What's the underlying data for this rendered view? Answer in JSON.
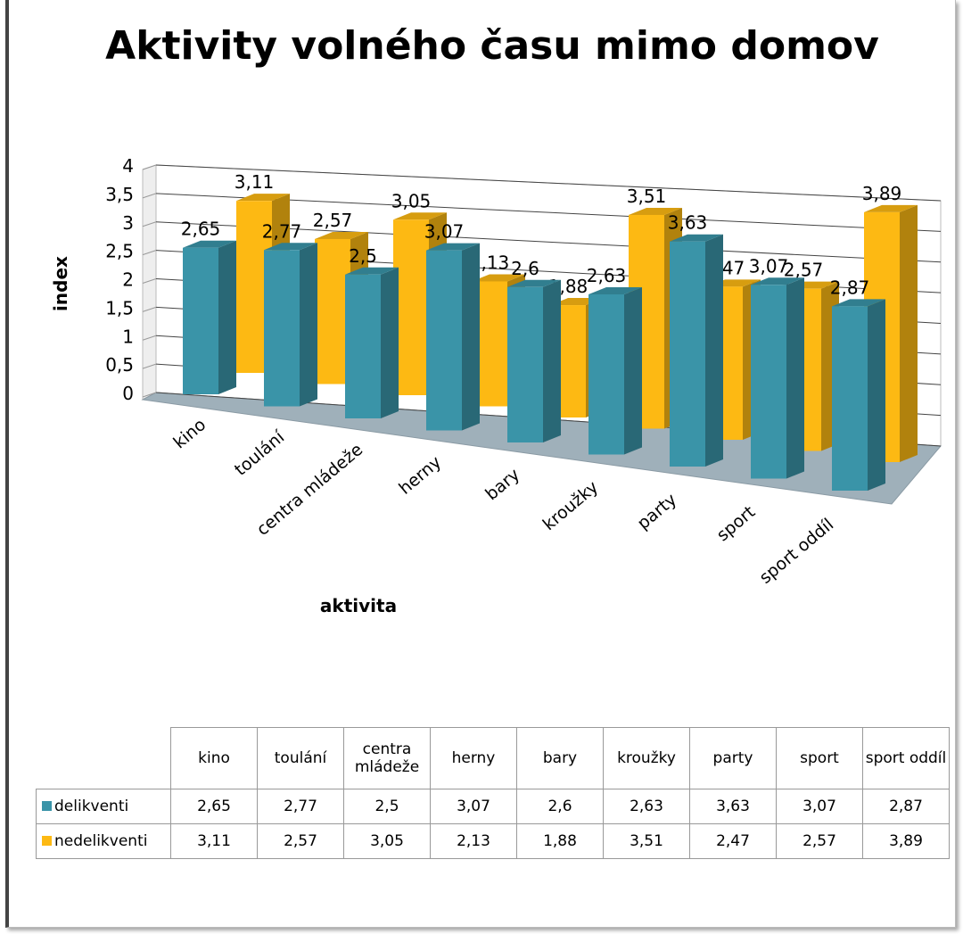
{
  "chart_data": {
    "type": "bar3d",
    "title": "Aktivity volného času mimo domov",
    "x_label": "aktivita",
    "y_label": "index",
    "categories": [
      "kino",
      "toulání",
      "centra mládeže",
      "herny",
      "bary",
      "kroužky",
      "party",
      "sport",
      "sport oddíl"
    ],
    "series": [
      {
        "name": "delikventi",
        "color": "#3a94a8",
        "values": [
          2.65,
          2.77,
          2.5,
          3.07,
          2.6,
          2.63,
          3.63,
          3.07,
          2.87
        ],
        "value_labels": [
          "2,65",
          "2,77",
          "2,5",
          "3,07",
          "2,6",
          "2,63",
          "3,63",
          "3,07",
          "2,87"
        ]
      },
      {
        "name": "nedelikventi",
        "color": "#fdb913",
        "values": [
          3.11,
          2.57,
          3.05,
          2.13,
          1.88,
          3.51,
          2.47,
          2.57,
          3.89
        ],
        "value_labels": [
          "3,11",
          "2,57",
          "3,05",
          "2,13",
          "1,88",
          "3,51",
          "2,47",
          "2,57",
          "3,89"
        ]
      }
    ],
    "ylim": [
      0,
      4
    ],
    "yticks": [
      0,
      {
        "value": 0.5,
        "label": "0,5"
      },
      1,
      {
        "value": 1.5,
        "label": "1,5"
      },
      2,
      {
        "value": 2.5,
        "label": "2,5"
      },
      3,
      {
        "value": 3.5,
        "label": "3,5"
      },
      4
    ],
    "grid": true
  }
}
